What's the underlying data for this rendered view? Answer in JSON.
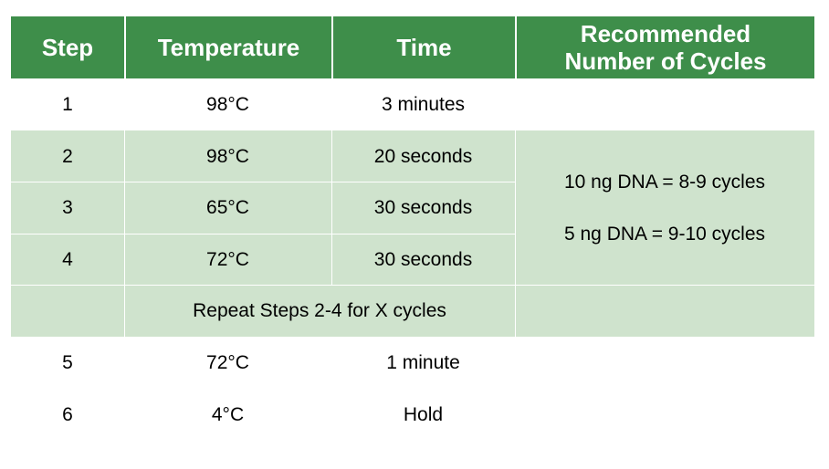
{
  "table": {
    "headers": {
      "step": "Step",
      "temperature": "Temperature",
      "time": "Time",
      "cycles_line1": "Recommended",
      "cycles_line2": "Number of Cycles"
    },
    "rows": [
      {
        "step": "1",
        "temperature": "98°C",
        "time": "3 minutes"
      },
      {
        "step": "2",
        "temperature": "98°C",
        "time": "20 seconds"
      },
      {
        "step": "3",
        "temperature": "65°C",
        "time": "30 seconds"
      },
      {
        "step": "4",
        "temperature": "72°C",
        "time": "30 seconds"
      },
      {
        "step": "5",
        "temperature": "72°C",
        "time": "1 minute"
      },
      {
        "step": "6",
        "temperature": "4°C",
        "time": "Hold"
      }
    ],
    "repeat_note": "Repeat Steps 2-4 for X cycles",
    "cycles_recommendation": [
      "10 ng DNA = 8-9 cycles",
      "5 ng DNA = 9-10 cycles"
    ],
    "colors": {
      "header": "#3e8e4a",
      "shaded": "#cfe3cd",
      "header_text": "#ffffff"
    }
  }
}
